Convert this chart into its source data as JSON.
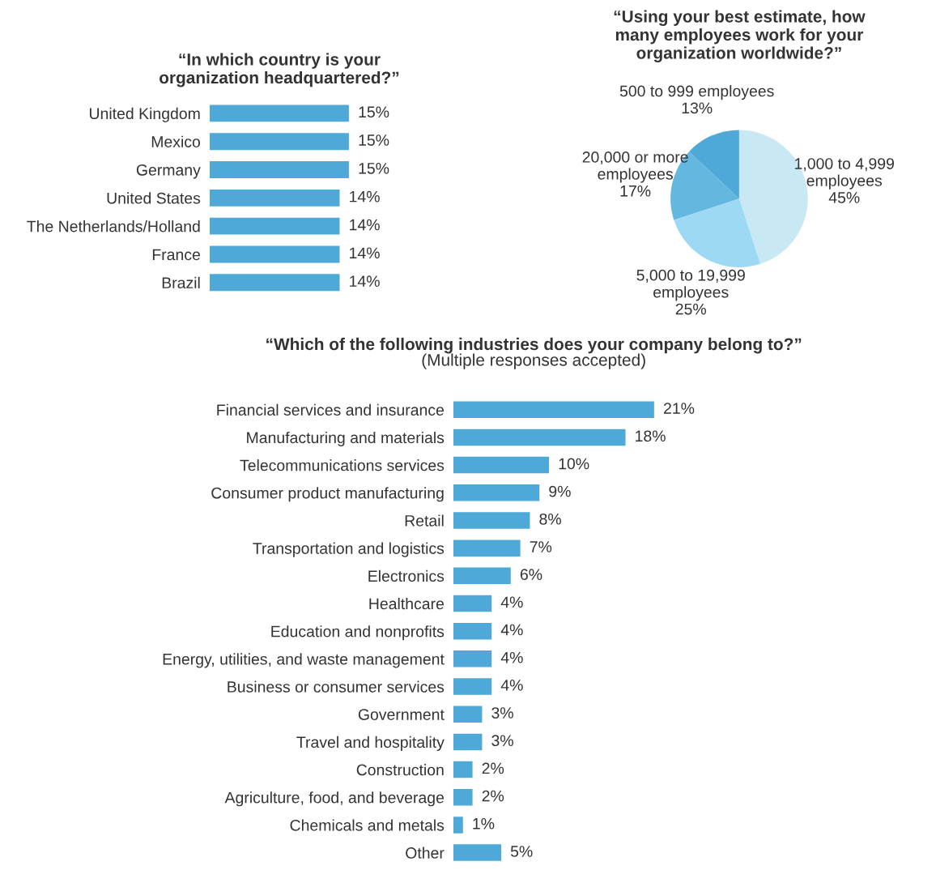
{
  "chart_data": [
    {
      "type": "bar",
      "orientation": "horizontal",
      "title": "“In which country is your\norganization headquartered?”",
      "categories": [
        "United Kingdom",
        "Mexico",
        "Germany",
        "United States",
        "The Netherlands/Holland",
        "France",
        "Brazil"
      ],
      "values": [
        15,
        15,
        15,
        14,
        14,
        14,
        14
      ],
      "value_labels": [
        "15%",
        "15%",
        "15%",
        "14%",
        "14%",
        "14%",
        "14%"
      ],
      "color": "#4ea9d8",
      "tick_labels": "y"
    },
    {
      "type": "pie",
      "title": "“Using your best estimate, how\nmany employees work for your\norganization worldwide?”",
      "categories": [
        "1,000 to 4,999\nemployees",
        "5,000 to 19,999\nemployees",
        "20,000 or more\nemployees",
        "500 to 999 employees"
      ],
      "values": [
        45,
        25,
        17,
        13
      ],
      "value_labels": [
        "45%",
        "25%",
        "17%",
        "13%"
      ],
      "colors": [
        "#c8e8f4",
        "#9dd9f5",
        "#64b8e0",
        "#4ea9d8"
      ]
    },
    {
      "type": "bar",
      "orientation": "horizontal",
      "title": "“Which of the following industries does your company belong to?”",
      "subtitle": "(Multiple responses accepted)",
      "categories": [
        "Financial services and insurance",
        "Manufacturing and materials",
        "Telecommunications services",
        "Consumer product manufacturing",
        "Retail",
        "Transportation and logistics",
        "Electronics",
        "Healthcare",
        "Education and nonprofits",
        "Energy, utilities, and waste management",
        "Business or consumer services",
        "Government",
        "Travel and hospitality",
        "Construction",
        "Agriculture, food, and beverage",
        "Chemicals and metals",
        "Other"
      ],
      "values": [
        21,
        18,
        10,
        9,
        8,
        7,
        6,
        4,
        4,
        4,
        4,
        3,
        3,
        2,
        2,
        1,
        5
      ],
      "value_labels": [
        "21%",
        "18%",
        "10%",
        "9%",
        "8%",
        "7%",
        "6%",
        "4%",
        "4%",
        "4%",
        "4%",
        "3%",
        "3%",
        "2%",
        "2%",
        "1%",
        "5%"
      ],
      "color": "#4ea9d8",
      "tick_labels": "y"
    }
  ]
}
